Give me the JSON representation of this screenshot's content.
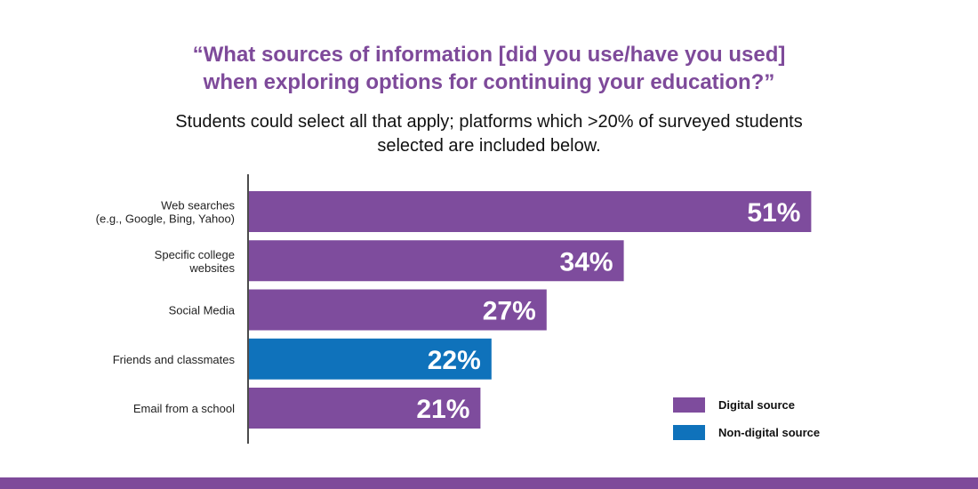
{
  "title": {
    "line1": "“What sources of information [did you use/have you used]",
    "line2": "when exploring options for continuing your education?”"
  },
  "subtitle": {
    "line1": "Students could select all that apply; platforms which >20% of surveyed students",
    "line2": "selected are included below."
  },
  "colors": {
    "digital": "#7e4c9d",
    "non_digital": "#0f72bb",
    "title": "#7e4a9a",
    "footer": "#7e4a9a"
  },
  "chart_data": {
    "type": "bar",
    "orientation": "horizontal",
    "categories": [
      [
        "Web searches",
        "(e.g., Google, Bing, Yahoo)"
      ],
      [
        "Specific college",
        "websites"
      ],
      [
        "Social Media"
      ],
      [
        "Friends and classmates"
      ],
      [
        "Email from a school"
      ]
    ],
    "values": [
      51,
      34,
      27,
      22,
      21
    ],
    "value_labels": [
      "51%",
      "34%",
      "27%",
      "22%",
      "21%"
    ],
    "groups": [
      "digital",
      "digital",
      "digital",
      "non_digital",
      "digital"
    ],
    "xlim": [
      0,
      60
    ],
    "grid": false,
    "legend": {
      "placement": "bottom-right",
      "entries": [
        {
          "key": "digital",
          "label": "Digital source"
        },
        {
          "key": "non_digital",
          "label": "Non-digital source"
        }
      ]
    }
  }
}
